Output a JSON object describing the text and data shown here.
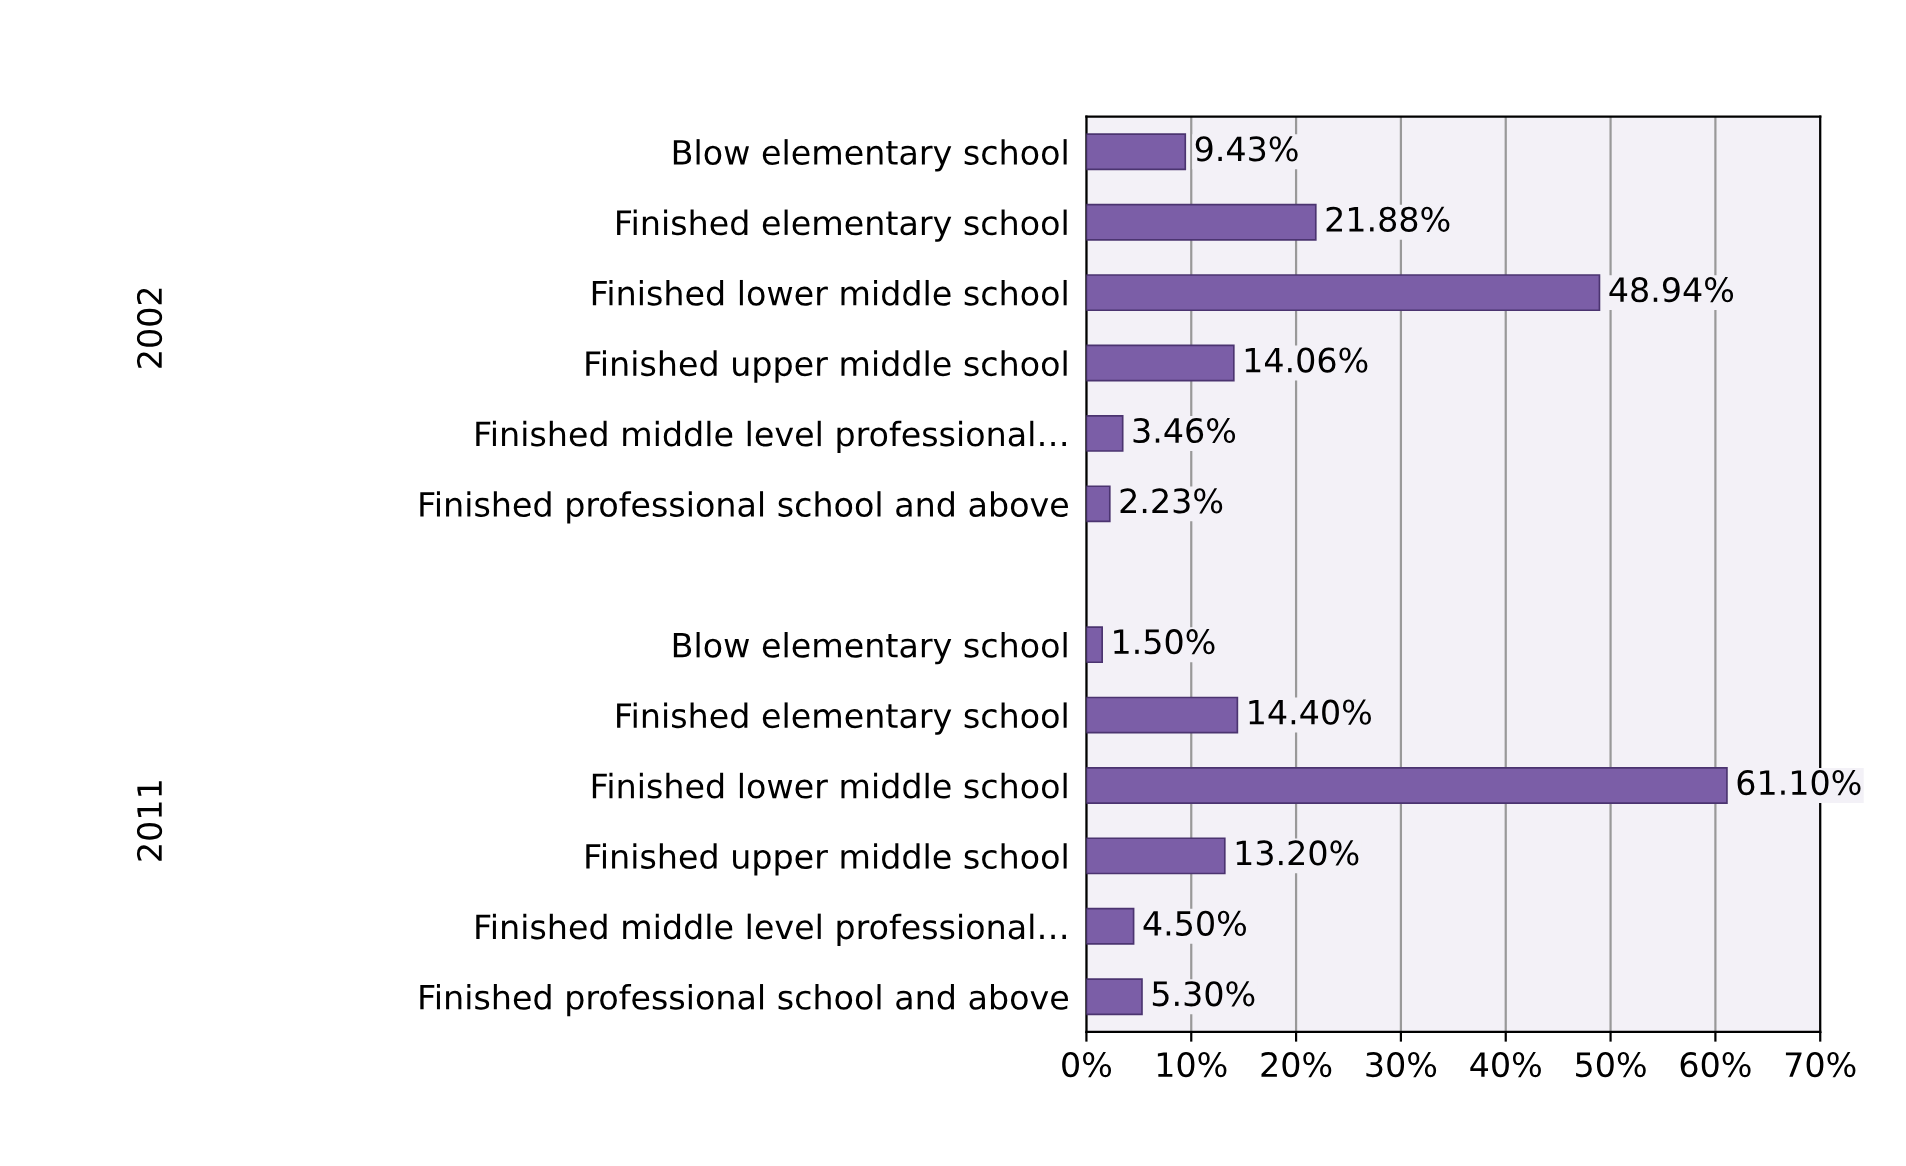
{
  "chart_data": {
    "type": "bar",
    "orientation": "horizontal",
    "categories": [
      "Blow elementary school",
      "Finished elementary school",
      "Finished lower middle school",
      "Finished upper middle school",
      "Finished middle level professional…",
      "Finished professional school and above",
      null,
      "Blow elementary school",
      "Finished elementary school",
      "Finished lower middle school",
      "Finished upper middle school",
      "Finished middle level professional…",
      "Finished professional school and above"
    ],
    "values": [
      9.43,
      21.88,
      48.94,
      14.06,
      3.46,
      2.23,
      null,
      1.5,
      14.4,
      61.1,
      13.2,
      4.5,
      5.3
    ],
    "value_labels": [
      "9.43%",
      "21.88%",
      "48.94%",
      "14.06%",
      "3.46%",
      "2.23%",
      null,
      "1.50%",
      "14.40%",
      "61.10%",
      "13.20%",
      "4.50%",
      "5.30%"
    ],
    "color": "#7b5ea7",
    "xlim": [
      0,
      70
    ],
    "xticks": [
      {
        "value": 0,
        "label": "0%"
      },
      {
        "value": 10,
        "label": "10%"
      },
      {
        "value": 20,
        "label": "20%"
      },
      {
        "value": 30,
        "label": "30%"
      },
      {
        "value": 40,
        "label": "40%"
      },
      {
        "value": 50,
        "label": "50%"
      },
      {
        "value": 60,
        "label": "60%"
      },
      {
        "value": 70,
        "label": "70%"
      }
    ],
    "grid": "x",
    "annotations": [
      "2002",
      "2011"
    ]
  }
}
